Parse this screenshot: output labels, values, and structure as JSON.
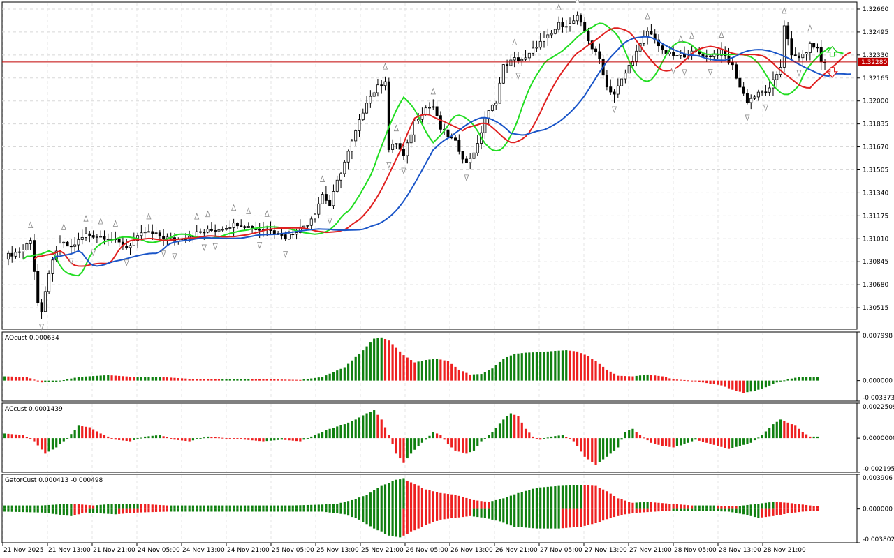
{
  "chart_data": [
    {
      "type": "candlestick",
      "panel": "main",
      "current_price": "1.32280",
      "y_ticks": [
        "1.32660",
        "1.32495",
        "1.32330",
        "1.32165",
        "1.32000",
        "1.31835",
        "1.31670",
        "1.31505",
        "1.31340",
        "1.31175",
        "1.31010",
        "1.30845",
        "1.30680",
        "1.30515"
      ],
      "x_ticks": [
        "21 Nov 2025",
        "21 Nov 13:00",
        "21 Nov 21:00",
        "24 Nov 05:00",
        "24 Nov 13:00",
        "24 Nov 21:00",
        "25 Nov 05:00",
        "25 Nov 13:00",
        "25 Nov 21:00",
        "26 Nov 05:00",
        "26 Nov 13:00",
        "26 Nov 21:00",
        "27 Nov 05:00",
        "27 Nov 13:00",
        "27 Nov 21:00",
        "28 Nov 05:00",
        "28 Nov 13:00",
        "28 Nov 21:00"
      ],
      "ylim": [
        1.3036,
        1.3271
      ],
      "close_anchors": [
        [
          0,
          1.3088
        ],
        [
          5,
          1.3093
        ],
        [
          7,
          1.3101
        ],
        [
          9,
          1.3055
        ],
        [
          10,
          1.3047
        ],
        [
          12,
          1.3077
        ],
        [
          15,
          1.3098
        ],
        [
          18,
          1.3095
        ],
        [
          22,
          1.3104
        ],
        [
          28,
          1.3102
        ],
        [
          33,
          1.3095
        ],
        [
          38,
          1.3106
        ],
        [
          46,
          1.31
        ],
        [
          52,
          1.3105
        ],
        [
          58,
          1.3108
        ],
        [
          63,
          1.3112
        ],
        [
          68,
          1.3108
        ],
        [
          72,
          1.3108
        ],
        [
          76,
          1.3102
        ],
        [
          79,
          1.3107
        ],
        [
          82,
          1.3112
        ],
        [
          84,
          1.312
        ],
        [
          86,
          1.3133
        ],
        [
          88,
          1.3125
        ],
        [
          90,
          1.3142
        ],
        [
          93,
          1.3163
        ],
        [
          96,
          1.3185
        ],
        [
          98,
          1.32
        ],
        [
          101,
          1.321
        ],
        [
          103,
          1.3215
        ],
        [
          104,
          1.3165
        ],
        [
          106,
          1.317
        ],
        [
          108,
          1.316
        ],
        [
          111,
          1.3185
        ],
        [
          114,
          1.3195
        ],
        [
          116,
          1.3196
        ],
        [
          118,
          1.318
        ],
        [
          122,
          1.317
        ],
        [
          125,
          1.3155
        ],
        [
          128,
          1.3168
        ],
        [
          130,
          1.3188
        ],
        [
          133,
          1.32
        ],
        [
          135,
          1.3225
        ],
        [
          138,
          1.323
        ],
        [
          141,
          1.323
        ],
        [
          144,
          1.324
        ],
        [
          148,
          1.3248
        ],
        [
          150,
          1.3255
        ],
        [
          153,
          1.3255
        ],
        [
          155,
          1.326
        ],
        [
          157,
          1.325
        ],
        [
          159,
          1.3238
        ],
        [
          161,
          1.323
        ],
        [
          163,
          1.321
        ],
        [
          165,
          1.3205
        ],
        [
          167,
          1.3215
        ],
        [
          170,
          1.323
        ],
        [
          172,
          1.324
        ],
        [
          174,
          1.325
        ],
        [
          176,
          1.3245
        ],
        [
          178,
          1.3235
        ],
        [
          182,
          1.3232
        ],
        [
          187,
          1.3235
        ],
        [
          190,
          1.3232
        ],
        [
          194,
          1.3235
        ],
        [
          197,
          1.3225
        ],
        [
          199,
          1.321
        ],
        [
          201,
          1.32
        ],
        [
          204,
          1.3205
        ],
        [
          207,
          1.3208
        ],
        [
          210,
          1.3225
        ],
        [
          211,
          1.3255
        ],
        [
          213,
          1.3232
        ],
        [
          216,
          1.3232
        ],
        [
          218,
          1.324
        ],
        [
          220,
          1.3238
        ],
        [
          221,
          1.3228
        ]
      ],
      "series": [
        {
          "name": "green line",
          "color": "#22dd22"
        },
        {
          "name": "red line",
          "color": "#e02020"
        },
        {
          "name": "blue line",
          "color": "#1a55c8"
        }
      ]
    },
    {
      "type": "bar",
      "panel": "AOcust",
      "label": "AOcust 0.000634",
      "y_ticks": [
        "0.007998",
        "0.000000",
        "-0.003373"
      ],
      "ylim": [
        -0.003373,
        0.007998
      ],
      "anchors": [
        [
          0,
          0.0007
        ],
        [
          6,
          0.0006
        ],
        [
          10,
          -0.0003
        ],
        [
          14,
          -0.0002
        ],
        [
          20,
          0.0006
        ],
        [
          28,
          0.0009
        ],
        [
          35,
          0.0006
        ],
        [
          42,
          0.0006
        ],
        [
          50,
          0.0003
        ],
        [
          58,
          0.0002
        ],
        [
          66,
          0.0003
        ],
        [
          72,
          0.0002
        ],
        [
          80,
          0.0001
        ],
        [
          86,
          0.0006
        ],
        [
          92,
          0.0022
        ],
        [
          97,
          0.005
        ],
        [
          100,
          0.0069
        ],
        [
          102,
          0.0071
        ],
        [
          104,
          0.0066
        ],
        [
          108,
          0.0042
        ],
        [
          111,
          0.003
        ],
        [
          114,
          0.0034
        ],
        [
          117,
          0.0036
        ],
        [
          120,
          0.0032
        ],
        [
          123,
          0.0018
        ],
        [
          126,
          0.001
        ],
        [
          129,
          0.0011
        ],
        [
          132,
          0.002
        ],
        [
          135,
          0.0036
        ],
        [
          138,
          0.0044
        ],
        [
          141,
          0.0046
        ],
        [
          145,
          0.0047
        ],
        [
          149,
          0.0049
        ],
        [
          152,
          0.005
        ],
        [
          155,
          0.0048
        ],
        [
          158,
          0.004
        ],
        [
          160,
          0.0032
        ],
        [
          163,
          0.0018
        ],
        [
          166,
          0.0008
        ],
        [
          170,
          0.0007
        ],
        [
          174,
          0.001
        ],
        [
          178,
          0.0007
        ],
        [
          181,
          0.0002
        ],
        [
          186,
          0.0
        ],
        [
          190,
          -0.0004
        ],
        [
          194,
          -0.0008
        ],
        [
          197,
          -0.0015
        ],
        [
          200,
          -0.002
        ],
        [
          203,
          -0.0017
        ],
        [
          206,
          -0.0011
        ],
        [
          209,
          -0.0003
        ],
        [
          212,
          0.0002
        ],
        [
          215,
          0.0006
        ],
        [
          219,
          0.0006
        ]
      ]
    },
    {
      "type": "bar",
      "panel": "ACcust",
      "label": "ACcust 0.0001439",
      "y_ticks": [
        "0.0022509",
        "0.0000000",
        "-0.0021956"
      ],
      "ylim": [
        -0.0021956,
        0.0022509
      ],
      "anchors": [
        [
          0,
          0.0003
        ],
        [
          5,
          0.0002
        ],
        [
          8,
          -0.0002
        ],
        [
          11,
          -0.001
        ],
        [
          14,
          -0.0006
        ],
        [
          17,
          0.0
        ],
        [
          20,
          0.0008
        ],
        [
          23,
          0.0007
        ],
        [
          26,
          0.0003
        ],
        [
          30,
          -0.0001
        ],
        [
          34,
          -0.0002
        ],
        [
          38,
          0.0001
        ],
        [
          42,
          0.0002
        ],
        [
          46,
          -0.0001
        ],
        [
          50,
          -0.0002
        ],
        [
          55,
          0.0001
        ],
        [
          60,
          0.0
        ],
        [
          65,
          -0.0001
        ],
        [
          70,
          -0.0002
        ],
        [
          75,
          -0.0001
        ],
        [
          80,
          -0.0002
        ],
        [
          84,
          0.0002
        ],
        [
          88,
          0.0006
        ],
        [
          92,
          0.0009
        ],
        [
          95,
          0.0012
        ],
        [
          98,
          0.0016
        ],
        [
          100,
          0.0018
        ],
        [
          102,
          0.0012
        ],
        [
          104,
          0.0002
        ],
        [
          106,
          -0.001
        ],
        [
          108,
          -0.0016
        ],
        [
          110,
          -0.001
        ],
        [
          112,
          -0.0005
        ],
        [
          114,
          -0.0001
        ],
        [
          116,
          0.0004
        ],
        [
          118,
          0.0002
        ],
        [
          120,
          -0.0004
        ],
        [
          122,
          -0.0008
        ],
        [
          125,
          -0.001
        ],
        [
          127,
          -0.0008
        ],
        [
          129,
          -0.0002
        ],
        [
          132,
          0.0004
        ],
        [
          135,
          0.0012
        ],
        [
          137,
          0.0016
        ],
        [
          139,
          0.0014
        ],
        [
          141,
          0.0006
        ],
        [
          143,
          0.0001
        ],
        [
          145,
          -0.0001
        ],
        [
          148,
          0.0001
        ],
        [
          151,
          0.0002
        ],
        [
          154,
          -0.0002
        ],
        [
          157,
          -0.0012
        ],
        [
          160,
          -0.0017
        ],
        [
          163,
          -0.0012
        ],
        [
          166,
          -0.0006
        ],
        [
          168,
          0.0004
        ],
        [
          170,
          0.0006
        ],
        [
          172,
          0.0002
        ],
        [
          175,
          -0.0003
        ],
        [
          178,
          -0.0005
        ],
        [
          181,
          -0.0006
        ],
        [
          184,
          -0.0004
        ],
        [
          187,
          -0.0001
        ],
        [
          190,
          -0.0003
        ],
        [
          193,
          -0.0005
        ],
        [
          196,
          -0.0007
        ],
        [
          199,
          -0.0005
        ],
        [
          202,
          -0.0003
        ],
        [
          205,
          0.0002
        ],
        [
          208,
          0.0009
        ],
        [
          210,
          0.0012
        ],
        [
          212,
          0.001
        ],
        [
          214,
          0.0008
        ],
        [
          216,
          0.0004
        ],
        [
          218,
          0.0001
        ]
      ]
    },
    {
      "type": "bar",
      "panel": "GatorCust",
      "label": "GatorCust 0.000413 -0.000498",
      "y_ticks": [
        "0.003906",
        "0.000000",
        "-0.003802"
      ],
      "ylim": [
        -0.003802,
        0.003906
      ],
      "upper_anchors": [
        [
          0,
          0.0004
        ],
        [
          10,
          0.0004
        ],
        [
          18,
          0.0006
        ],
        [
          24,
          0.0004
        ],
        [
          30,
          0.0006
        ],
        [
          36,
          0.0006
        ],
        [
          44,
          0.0004
        ],
        [
          52,
          0.0004
        ],
        [
          60,
          0.0004
        ],
        [
          70,
          0.0004
        ],
        [
          78,
          0.0004
        ],
        [
          86,
          0.0005
        ],
        [
          90,
          0.0006
        ],
        [
          94,
          0.001
        ],
        [
          98,
          0.0016
        ],
        [
          102,
          0.0026
        ],
        [
          106,
          0.0033
        ],
        [
          108,
          0.0034
        ],
        [
          111,
          0.0028
        ],
        [
          114,
          0.0022
        ],
        [
          118,
          0.0018
        ],
        [
          122,
          0.0016
        ],
        [
          127,
          0.001
        ],
        [
          131,
          0.0008
        ],
        [
          135,
          0.0012
        ],
        [
          139,
          0.0018
        ],
        [
          144,
          0.0024
        ],
        [
          150,
          0.0026
        ],
        [
          156,
          0.0027
        ],
        [
          160,
          0.0026
        ],
        [
          163,
          0.002
        ],
        [
          166,
          0.0012
        ],
        [
          170,
          0.0007
        ],
        [
          174,
          0.0008
        ],
        [
          180,
          0.0006
        ],
        [
          186,
          0.0004
        ],
        [
          192,
          0.0004
        ],
        [
          198,
          0.0003
        ],
        [
          204,
          0.0006
        ],
        [
          208,
          0.0008
        ],
        [
          212,
          0.0007
        ],
        [
          216,
          0.0005
        ],
        [
          220,
          0.0003
        ]
      ],
      "lower_anchors": [
        [
          0,
          -0.0003
        ],
        [
          10,
          -0.0004
        ],
        [
          18,
          -0.0008
        ],
        [
          22,
          -0.0004
        ],
        [
          30,
          -0.0006
        ],
        [
          36,
          -0.0004
        ],
        [
          44,
          -0.0003
        ],
        [
          52,
          -0.0003
        ],
        [
          60,
          -0.0003
        ],
        [
          70,
          -0.0003
        ],
        [
          78,
          -0.0003
        ],
        [
          86,
          -0.0003
        ],
        [
          92,
          -0.0006
        ],
        [
          96,
          -0.0012
        ],
        [
          100,
          -0.0022
        ],
        [
          104,
          -0.003
        ],
        [
          107,
          -0.0032
        ],
        [
          110,
          -0.0026
        ],
        [
          114,
          -0.0018
        ],
        [
          118,
          -0.0012
        ],
        [
          122,
          -0.001
        ],
        [
          126,
          -0.0008
        ],
        [
          130,
          -0.001
        ],
        [
          134,
          -0.0014
        ],
        [
          138,
          -0.002
        ],
        [
          144,
          -0.0022
        ],
        [
          150,
          -0.0022
        ],
        [
          156,
          -0.002
        ],
        [
          160,
          -0.0016
        ],
        [
          164,
          -0.001
        ],
        [
          168,
          -0.0006
        ],
        [
          172,
          -0.0004
        ],
        [
          180,
          -0.0002
        ],
        [
          188,
          -0.0002
        ],
        [
          196,
          -0.0003
        ],
        [
          200,
          -0.0006
        ],
        [
          204,
          -0.001
        ],
        [
          208,
          -0.0008
        ],
        [
          212,
          -0.0005
        ],
        [
          216,
          -0.0003
        ],
        [
          220,
          -0.0002
        ]
      ]
    }
  ]
}
